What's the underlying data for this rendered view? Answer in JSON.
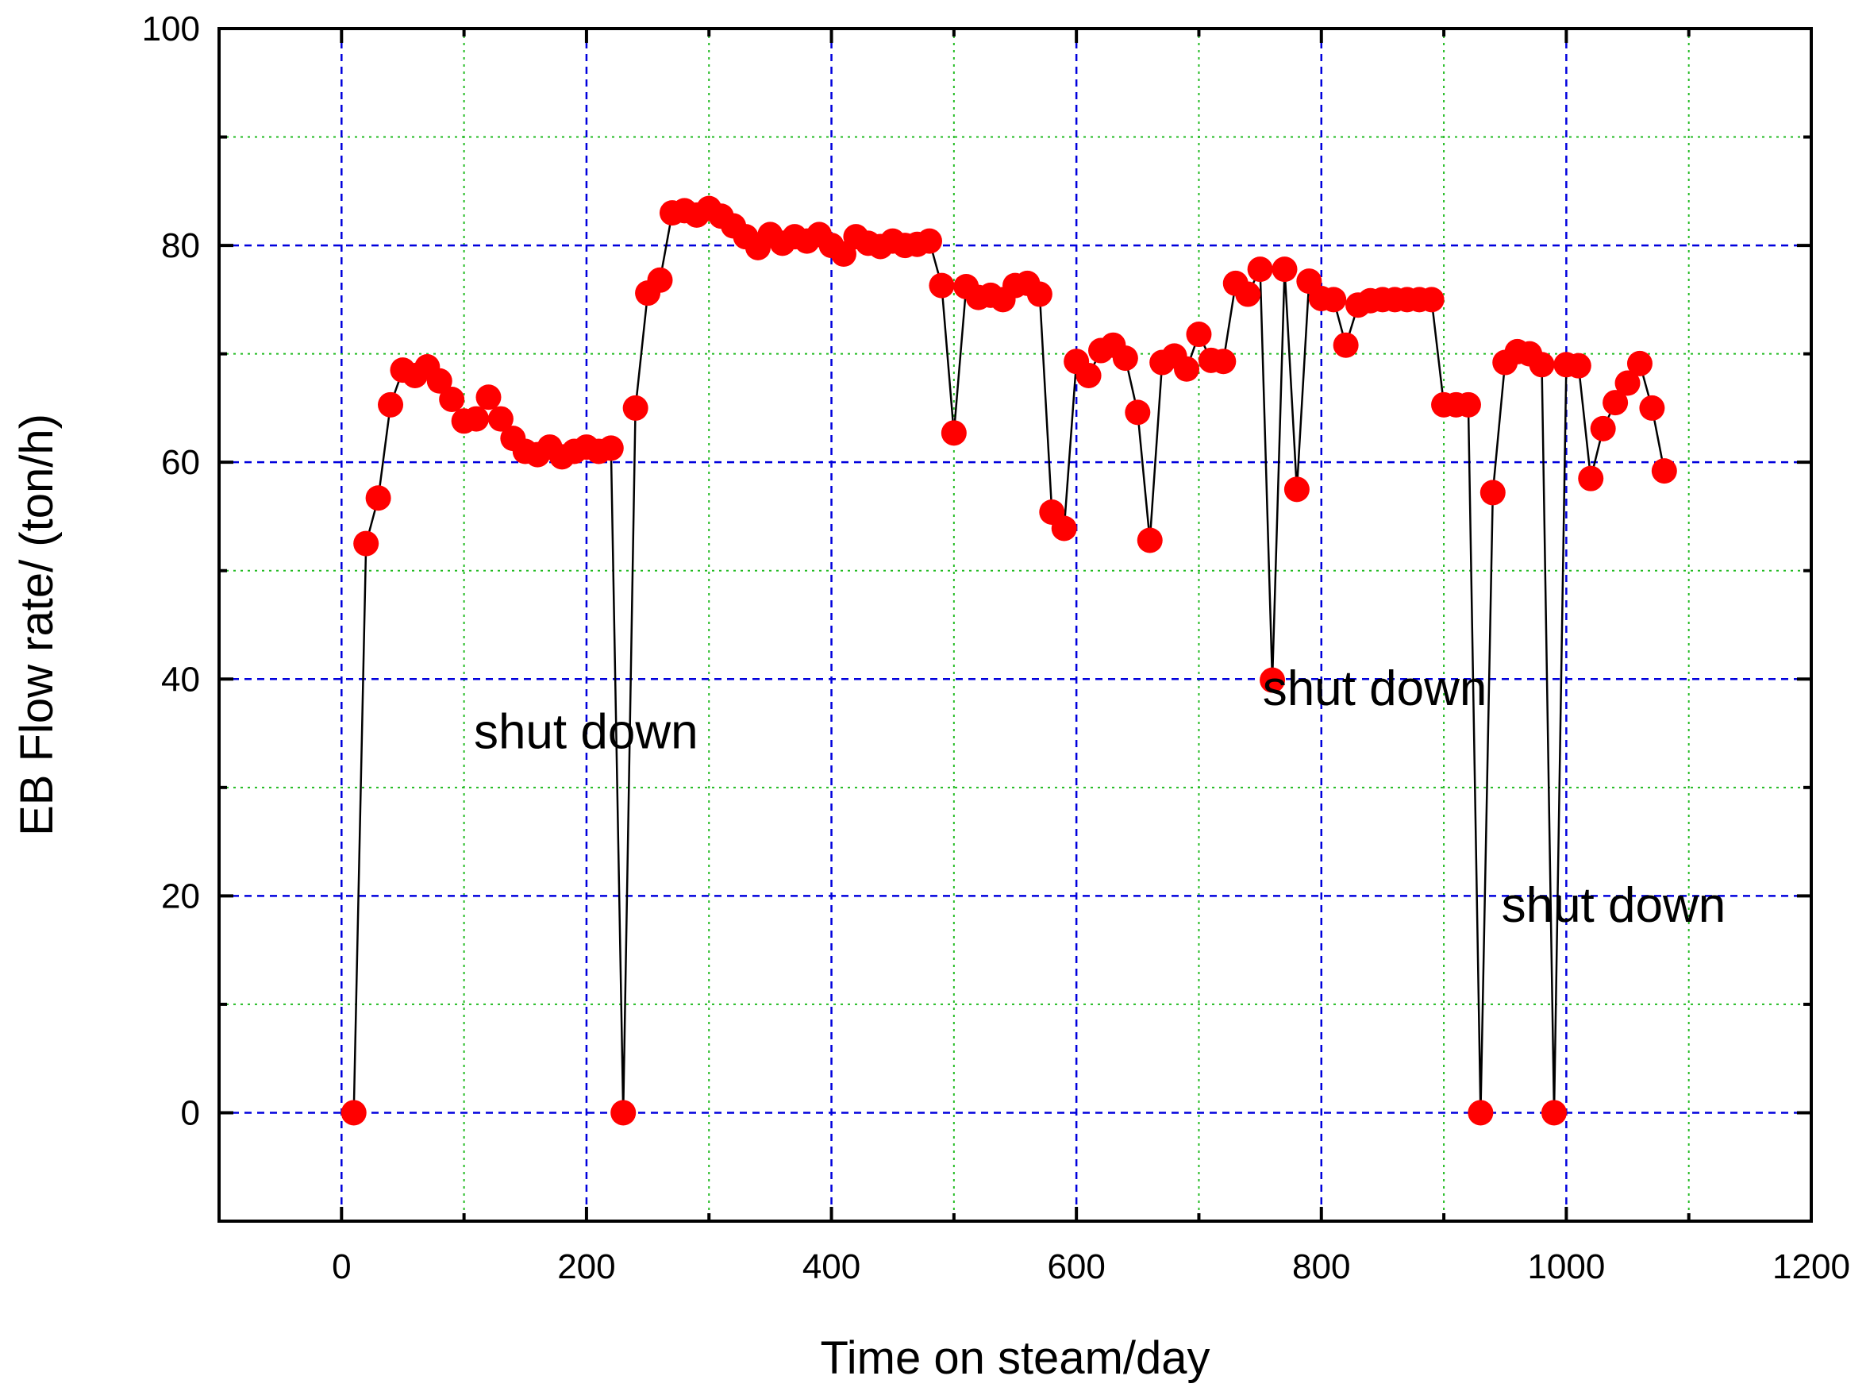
{
  "chart_data": {
    "type": "line",
    "title": "",
    "xlabel": "Time on steam/day",
    "ylabel": "EB Flow rate/ (ton/h)",
    "xlim": [
      -100,
      1200
    ],
    "ylim": [
      -10,
      100
    ],
    "x_ticks": [
      0,
      200,
      400,
      600,
      800,
      1000,
      1200
    ],
    "y_ticks": [
      0,
      20,
      40,
      60,
      80,
      100
    ],
    "grid": true,
    "legend": "none",
    "colors": {
      "marker": "#ff0000",
      "line": "#000000",
      "major_grid": "#0000dd",
      "minor_grid": "#22bb22"
    },
    "annotations": [
      {
        "text": "shut down",
        "x": 108,
        "y": 33.6
      },
      {
        "text": "shut down",
        "x": 752,
        "y": 37.6
      },
      {
        "text": "shut down",
        "x": 947,
        "y": 17.6
      }
    ],
    "series": [
      {
        "points": [
          [
            10,
            0
          ],
          [
            20,
            52.5
          ],
          [
            30,
            56.7
          ],
          [
            40,
            65.3
          ],
          [
            50,
            68.5
          ],
          [
            60,
            68.0
          ],
          [
            70,
            68.8
          ],
          [
            80,
            67.5
          ],
          [
            90,
            65.8
          ],
          [
            100,
            63.8
          ],
          [
            110,
            64.0
          ],
          [
            120,
            66.0
          ],
          [
            130,
            64.0
          ],
          [
            140,
            62.2
          ],
          [
            150,
            61.0
          ],
          [
            160,
            60.7
          ],
          [
            170,
            61.4
          ],
          [
            180,
            60.5
          ],
          [
            190,
            61.0
          ],
          [
            200,
            61.4
          ],
          [
            210,
            61.0
          ],
          [
            220,
            61.3
          ],
          [
            230,
            0
          ],
          [
            240,
            65.0
          ],
          [
            250,
            75.6
          ],
          [
            260,
            76.8
          ],
          [
            270,
            83.0
          ],
          [
            280,
            83.2
          ],
          [
            290,
            82.8
          ],
          [
            300,
            83.4
          ],
          [
            310,
            82.7
          ],
          [
            320,
            81.8
          ],
          [
            330,
            80.8
          ],
          [
            340,
            79.8
          ],
          [
            350,
            81.0
          ],
          [
            360,
            80.2
          ],
          [
            370,
            80.8
          ],
          [
            380,
            80.4
          ],
          [
            390,
            81.0
          ],
          [
            400,
            80.0
          ],
          [
            410,
            79.2
          ],
          [
            420,
            80.8
          ],
          [
            430,
            80.2
          ],
          [
            440,
            79.9
          ],
          [
            450,
            80.4
          ],
          [
            460,
            80.0
          ],
          [
            470,
            80.1
          ],
          [
            480,
            80.4
          ],
          [
            490,
            76.3
          ],
          [
            500,
            62.7
          ],
          [
            510,
            76.2
          ],
          [
            520,
            75.2
          ],
          [
            530,
            75.4
          ],
          [
            540,
            75.0
          ],
          [
            550,
            76.3
          ],
          [
            560,
            76.5
          ],
          [
            570,
            75.5
          ],
          [
            580,
            55.4
          ],
          [
            590,
            53.9
          ],
          [
            600,
            69.3
          ],
          [
            610,
            68.0
          ],
          [
            620,
            70.3
          ],
          [
            630,
            70.8
          ],
          [
            640,
            69.6
          ],
          [
            650,
            64.6
          ],
          [
            660,
            52.8
          ],
          [
            670,
            69.2
          ],
          [
            680,
            69.8
          ],
          [
            690,
            68.6
          ],
          [
            700,
            71.8
          ],
          [
            710,
            69.4
          ],
          [
            720,
            69.3
          ],
          [
            730,
            76.5
          ],
          [
            740,
            75.5
          ],
          [
            750,
            77.8
          ],
          [
            760,
            39.9
          ],
          [
            770,
            77.8
          ],
          [
            780,
            57.5
          ],
          [
            790,
            76.7
          ],
          [
            800,
            75.1
          ],
          [
            810,
            75.0
          ],
          [
            820,
            70.8
          ],
          [
            830,
            74.5
          ],
          [
            840,
            74.9
          ],
          [
            850,
            75.0
          ],
          [
            860,
            75.0
          ],
          [
            870,
            75.0
          ],
          [
            880,
            75.0
          ],
          [
            890,
            75.0
          ],
          [
            900,
            65.3
          ],
          [
            910,
            65.3
          ],
          [
            920,
            65.3
          ],
          [
            930,
            0
          ],
          [
            940,
            57.2
          ],
          [
            950,
            69.2
          ],
          [
            960,
            70.2
          ],
          [
            970,
            70.0
          ],
          [
            980,
            69.0
          ],
          [
            990,
            0
          ],
          [
            1000,
            69.0
          ],
          [
            1010,
            68.9
          ],
          [
            1020,
            58.5
          ],
          [
            1030,
            63.1
          ],
          [
            1040,
            65.5
          ],
          [
            1050,
            67.3
          ],
          [
            1060,
            69.1
          ],
          [
            1070,
            65.0
          ],
          [
            1080,
            59.2
          ]
        ]
      }
    ]
  }
}
